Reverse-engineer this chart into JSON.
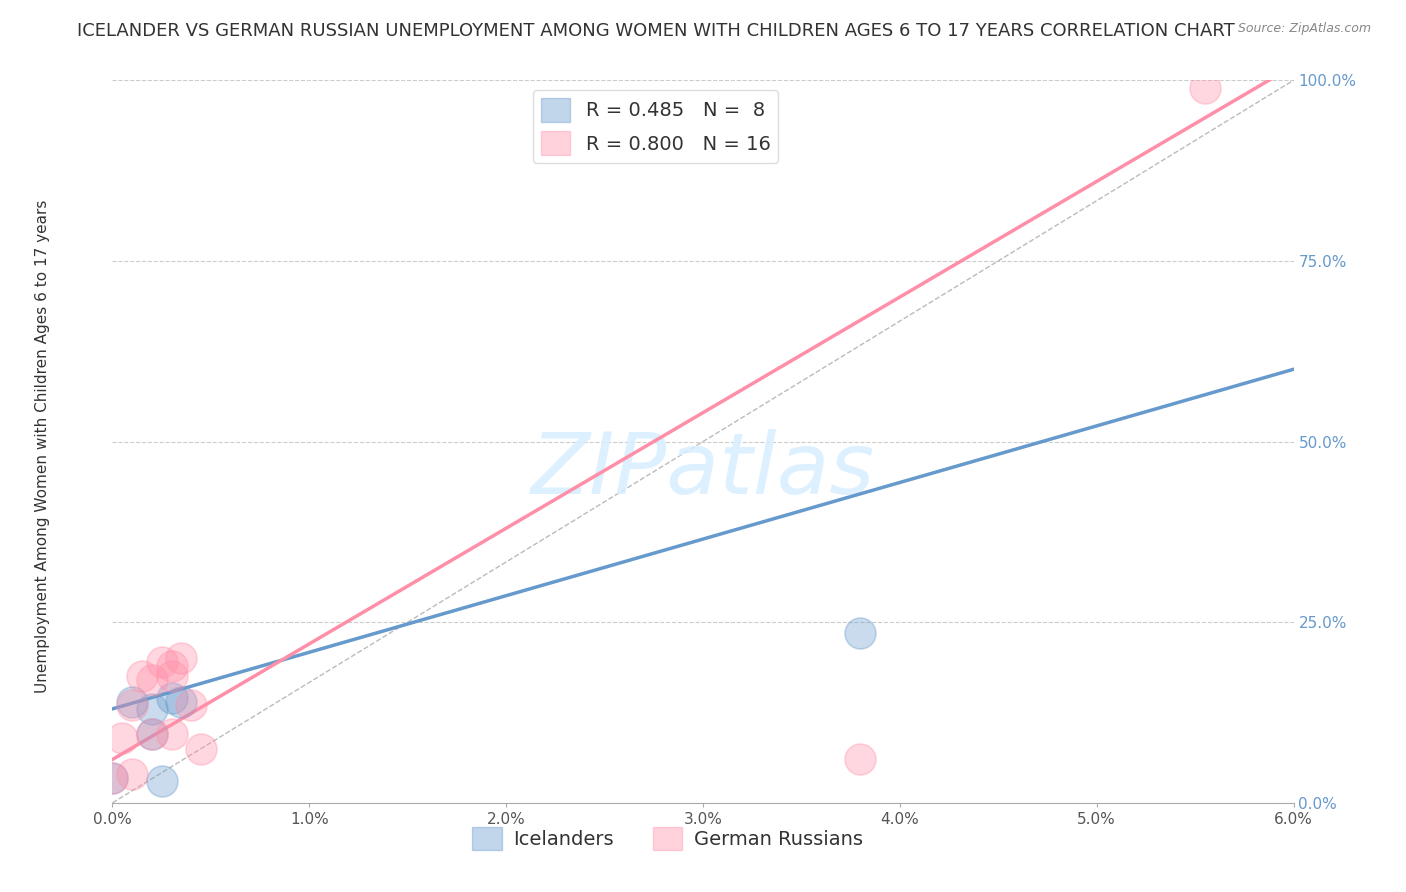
{
  "title": "ICELANDER VS GERMAN RUSSIAN UNEMPLOYMENT AMONG WOMEN WITH CHILDREN AGES 6 TO 17 YEARS CORRELATION CHART",
  "source": "Source: ZipAtlas.com",
  "ylabel": "Unemployment Among Women with Children Ages 6 to 17 years",
  "xlim": [
    0.0,
    0.06
  ],
  "ylim": [
    0.0,
    1.0
  ],
  "xticks": [
    0.0,
    0.01,
    0.02,
    0.03,
    0.04,
    0.05,
    0.06
  ],
  "xticklabels": [
    "0.0%",
    "1.0%",
    "2.0%",
    "3.0%",
    "4.0%",
    "5.0%",
    "6.0%"
  ],
  "yticks": [
    0.0,
    0.25,
    0.5,
    0.75,
    1.0
  ],
  "yticklabels": [
    "0.0%",
    "25.0%",
    "50.0%",
    "75.0%",
    "100.0%"
  ],
  "blue_R": 0.485,
  "blue_N": 8,
  "pink_R": 0.8,
  "pink_N": 16,
  "blue_color": "#6699CC",
  "pink_color": "#FF8FA8",
  "blue_scatter_x": [
    0.0,
    0.001,
    0.002,
    0.002,
    0.003,
    0.0035,
    0.038,
    0.0025
  ],
  "blue_scatter_y": [
    0.035,
    0.14,
    0.095,
    0.13,
    0.145,
    0.14,
    0.235,
    0.03
  ],
  "pink_scatter_x": [
    0.0,
    0.0005,
    0.001,
    0.0015,
    0.002,
    0.002,
    0.0025,
    0.003,
    0.003,
    0.003,
    0.004,
    0.0035,
    0.0045,
    0.038,
    0.0555,
    0.001
  ],
  "pink_scatter_y": [
    0.035,
    0.09,
    0.135,
    0.175,
    0.095,
    0.17,
    0.195,
    0.175,
    0.19,
    0.095,
    0.135,
    0.2,
    0.075,
    0.06,
    0.99,
    0.04
  ],
  "blue_line_x0": 0.0,
  "blue_line_x1": 0.06,
  "blue_line_y0": 0.13,
  "blue_line_y1": 0.6,
  "pink_line_x0": 0.0,
  "pink_line_x1": 0.06,
  "pink_line_y0": 0.06,
  "pink_line_y1": 1.02,
  "ref_line_color": "#BBBBBB",
  "watermark_text": "ZIPatlas",
  "watermark_color": "#D8EEFF",
  "bg_color": "#FFFFFF",
  "grid_color": "#CCCCCC",
  "title_fontsize": 13,
  "axis_label_fontsize": 11,
  "tick_fontsize": 11,
  "legend_fontsize": 14,
  "scatter_size": 500
}
